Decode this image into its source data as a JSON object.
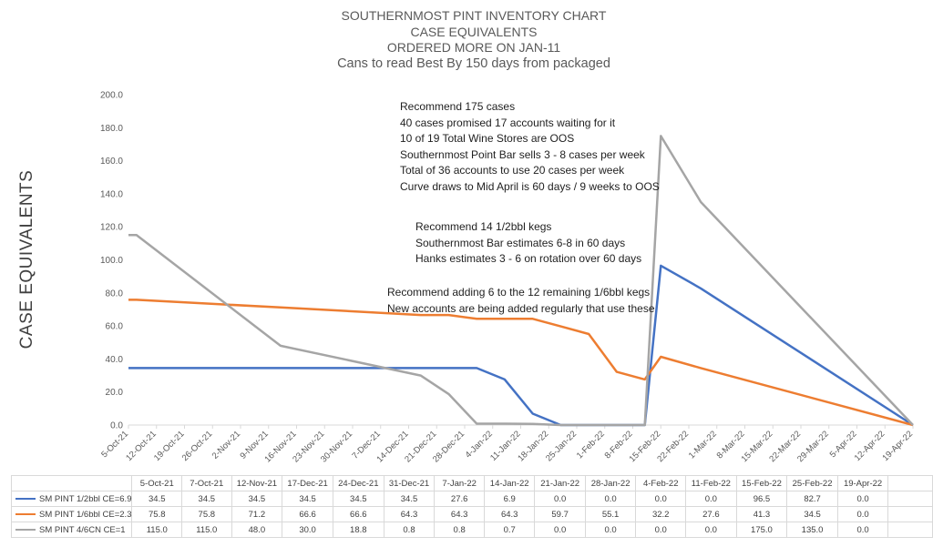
{
  "title_lines": [
    "SOUTHERNMOST PINT INVENTORY CHART",
    "CASE EQUIVALENTS",
    "ORDERED MORE ON JAN-11",
    "Cans to read Best By 150 days from packaged"
  ],
  "annotations": [
    [
      "Recommend 175 cases",
      "40 cases promised 17 accounts waiting for it",
      "10 of 19 Total Wine Stores are OOS",
      "Southernmost Point Bar sells 3 - 8 cases  per week",
      "Total of 36 accounts to use 20 cases per week",
      "Curve draws to Mid April is 60 days / 9 weeks to OOS"
    ],
    [
      "Recommend  14 1/2bbl kegs",
      "Southernmost Bar estimates 6-8 in 60 days",
      "Hanks estimates 3 - 6 on rotation over 60 days"
    ],
    [
      "Recommend adding 6 to the 12 remaining 1/6bbl kegs",
      "New accounts are being added regularly that use these"
    ]
  ],
  "chart_data": {
    "type": "line",
    "ylabel": "CASE EQUIVALENTS",
    "ylim": [
      0,
      200
    ],
    "yticks": [
      "0.0",
      "20.0",
      "40.0",
      "60.0",
      "80.0",
      "100.0",
      "120.0",
      "140.0",
      "160.0",
      "180.0",
      "200.0"
    ],
    "x_ticks": [
      "5-Oct-21",
      "12-Oct-21",
      "19-Oct-21",
      "26-Oct-21",
      "2-Nov-21",
      "9-Nov-21",
      "16-Nov-21",
      "23-Nov-21",
      "30-Nov-21",
      "7-Dec-21",
      "14-Dec-21",
      "21-Dec-21",
      "28-Dec-21",
      "4-Jan-22",
      "11-Jan-22",
      "18-Jan-22",
      "25-Jan-22",
      "1-Feb-22",
      "8-Feb-22",
      "15-Feb-22",
      "22-Feb-22",
      "1-Mar-22",
      "8-Mar-22",
      "15-Mar-22",
      "22-Mar-22",
      "29-Mar-22",
      "5-Apr-22",
      "12-Apr-22",
      "19-Apr-22"
    ],
    "table_dates": [
      "5-Oct-21",
      "7-Oct-21",
      "12-Nov-21",
      "17-Dec-21",
      "24-Dec-21",
      "31-Dec-21",
      "7-Jan-22",
      "14-Jan-22",
      "21-Jan-22",
      "28-Jan-22",
      "4-Feb-22",
      "11-Feb-22",
      "15-Feb-22",
      "25-Feb-22",
      "19-Apr-22"
    ],
    "table_values": [
      [
        "34.5",
        "34.5",
        "34.5",
        "34.5",
        "34.5",
        "34.5",
        "27.6",
        "6.9",
        "0.0",
        "0.0",
        "0.0",
        "0.0",
        "96.5",
        "82.7",
        "0.0"
      ],
      [
        "75.8",
        "75.8",
        "71.2",
        "66.6",
        "66.6",
        "64.3",
        "64.3",
        "64.3",
        "59.7",
        "55.1",
        "32.2",
        "27.6",
        "41.3",
        "34.5",
        "0.0"
      ],
      [
        "115.0",
        "115.0",
        "48.0",
        "30.0",
        "18.8",
        "0.8",
        "0.8",
        "0.7",
        "0.0",
        "0.0",
        "0.0",
        "0.0",
        "175.0",
        "135.0",
        "0.0"
      ]
    ],
    "series": [
      {
        "name": "SM PINT 1/2bbl CE=6.9",
        "color": "#4472c4",
        "points": [
          [
            "5-Oct-21",
            34.5
          ],
          [
            "7-Oct-21",
            34.5
          ],
          [
            "12-Nov-21",
            34.5
          ],
          [
            "17-Dec-21",
            34.5
          ],
          [
            "24-Dec-21",
            34.5
          ],
          [
            "31-Dec-21",
            34.5
          ],
          [
            "7-Jan-22",
            27.6
          ],
          [
            "14-Jan-22",
            6.9
          ],
          [
            "21-Jan-22",
            0.0
          ],
          [
            "28-Jan-22",
            0.0
          ],
          [
            "4-Feb-22",
            0.0
          ],
          [
            "11-Feb-22",
            0.0
          ],
          [
            "15-Feb-22",
            96.5
          ],
          [
            "25-Feb-22",
            82.7
          ],
          [
            "19-Apr-22",
            0.0
          ]
        ]
      },
      {
        "name": "SM PINT 1/6bbl CE=2.3",
        "color": "#ed7d31",
        "points": [
          [
            "5-Oct-21",
            75.8
          ],
          [
            "7-Oct-21",
            75.8
          ],
          [
            "12-Nov-21",
            71.2
          ],
          [
            "17-Dec-21",
            66.6
          ],
          [
            "24-Dec-21",
            66.6
          ],
          [
            "31-Dec-21",
            64.3
          ],
          [
            "7-Jan-22",
            64.3
          ],
          [
            "14-Jan-22",
            64.3
          ],
          [
            "21-Jan-22",
            59.7
          ],
          [
            "28-Jan-22",
            55.1
          ],
          [
            "4-Feb-22",
            32.2
          ],
          [
            "11-Feb-22",
            27.6
          ],
          [
            "15-Feb-22",
            41.3
          ],
          [
            "25-Feb-22",
            34.5
          ],
          [
            "19-Apr-22",
            0.0
          ]
        ]
      },
      {
        "name": "SM PINT 4/6CN CE=1",
        "color": "#a5a5a5",
        "points": [
          [
            "5-Oct-21",
            115.0
          ],
          [
            "7-Oct-21",
            115.0
          ],
          [
            "12-Nov-21",
            48.0
          ],
          [
            "17-Dec-21",
            30.0
          ],
          [
            "24-Dec-21",
            18.8
          ],
          [
            "31-Dec-21",
            0.8
          ],
          [
            "7-Jan-22",
            0.8
          ],
          [
            "14-Jan-22",
            0.7
          ],
          [
            "21-Jan-22",
            0.0
          ],
          [
            "28-Jan-22",
            0.0
          ],
          [
            "4-Feb-22",
            0.0
          ],
          [
            "11-Feb-22",
            0.0
          ],
          [
            "15-Feb-22",
            175.0
          ],
          [
            "25-Feb-22",
            135.0
          ],
          [
            "19-Apr-22",
            0.0
          ]
        ]
      }
    ]
  }
}
